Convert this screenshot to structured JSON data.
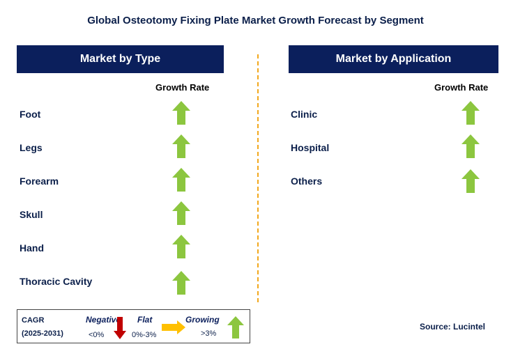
{
  "title": "Global Osteotomy Fixing Plate Market Growth Forecast by Segment",
  "left_panel": {
    "header": "Market by Type",
    "growth_label": "Growth Rate",
    "rows": [
      {
        "label": "Foot",
        "trend": "growing"
      },
      {
        "label": "Legs",
        "trend": "growing"
      },
      {
        "label": "Forearm",
        "trend": "growing"
      },
      {
        "label": "Skull",
        "trend": "growing"
      },
      {
        "label": "Hand",
        "trend": "growing"
      },
      {
        "label": "Thoracic Cavity",
        "trend": "growing"
      }
    ]
  },
  "right_panel": {
    "header": "Market by Application",
    "growth_label": "Growth Rate",
    "rows": [
      {
        "label": "Clinic",
        "trend": "growing"
      },
      {
        "label": "Hospital",
        "trend": "growing"
      },
      {
        "label": "Others",
        "trend": "growing"
      }
    ]
  },
  "legend": {
    "cagr": "CAGR",
    "period": "(2025-2031)",
    "negative": {
      "label": "Negative",
      "range": "<0%",
      "icon": "red-down-arrow-icon"
    },
    "flat": {
      "label": "Flat",
      "range": "0%-3%",
      "icon": "orange-right-arrow-icon"
    },
    "growing": {
      "label": "Growing",
      "range": ">3%",
      "icon": "green-up-arrow-icon"
    }
  },
  "source": "Source: Lucintel",
  "colors": {
    "header_bg": "#0b1f5c",
    "growing": "#8cc63f",
    "negative": "#c00000",
    "flat": "#ffc000",
    "divider": "#f2a81d"
  }
}
